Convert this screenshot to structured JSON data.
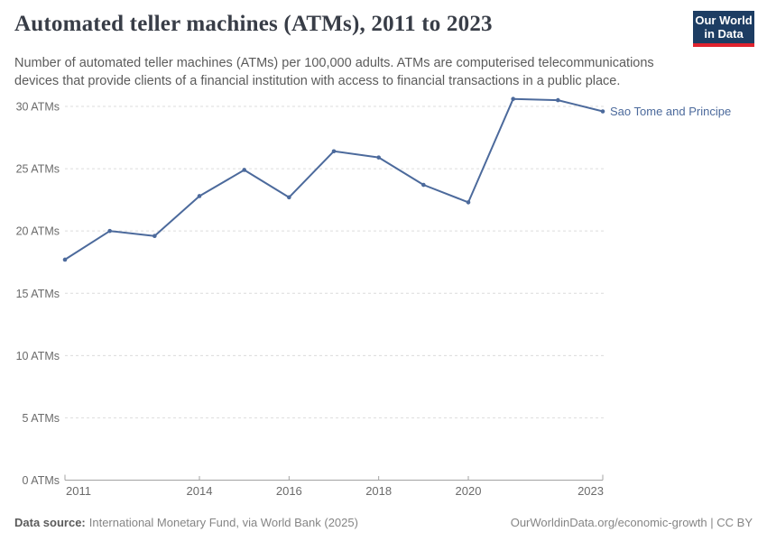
{
  "header": {
    "title": "Automated teller machines (ATMs), 2011 to 2023",
    "subtitle": "Number of automated teller machines (ATMs) per 100,000 adults. ATMs are computerised telecommunications devices that provide clients of a financial institution with access to financial transactions in a public place.",
    "logo": {
      "line1": "Our World",
      "line2": "in Data",
      "bg_color": "#1d3d63",
      "stripe_color": "#e0232e"
    }
  },
  "chart_data": {
    "type": "line",
    "title": "Automated teller machines (ATMs), 2011 to 2023",
    "xlabel": "",
    "ylabel": "ATMs per 100,000 adults",
    "xlim": [
      2011,
      2023
    ],
    "ylim": [
      0,
      30
    ],
    "grid": "horizontal-dashed",
    "legend_position": "end-of-line-label",
    "x_ticks": [
      2011,
      2014,
      2016,
      2018,
      2020,
      2023
    ],
    "y_ticks": [
      0,
      5,
      10,
      15,
      20,
      25,
      30
    ],
    "y_tick_suffix": " ATMs",
    "series": [
      {
        "name": "Sao Tome and Principe",
        "color": "#4C6A9C",
        "x": [
          2011,
          2012,
          2013,
          2014,
          2015,
          2016,
          2017,
          2018,
          2019,
          2020,
          2021,
          2022,
          2023
        ],
        "values": [
          17.7,
          20.0,
          19.6,
          22.8,
          24.9,
          22.7,
          26.4,
          25.9,
          23.7,
          22.3,
          30.6,
          30.5,
          29.6
        ]
      }
    ],
    "colors": {
      "gridline": "#dcdcdc",
      "axis": "#a3a3a3",
      "tick_text": "#6b6b6b"
    }
  },
  "footer": {
    "source_label": "Data source:",
    "source_text": "International Monetary Fund, via World Bank (2025)",
    "credit": "OurWorldinData.org/economic-growth | CC BY"
  }
}
